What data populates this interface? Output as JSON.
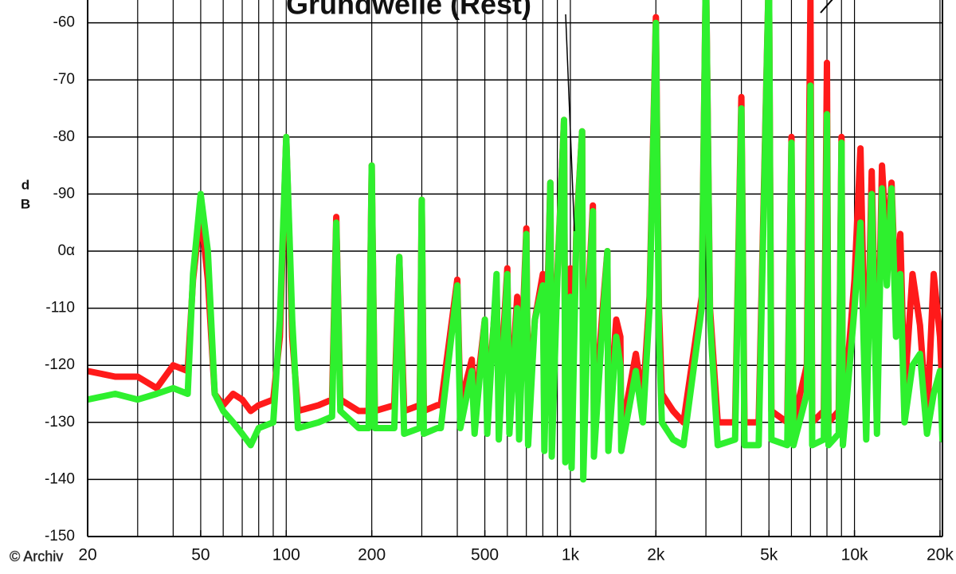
{
  "chart_data": {
    "type": "line",
    "title": "Grundwelle (Rest)",
    "y_label_lines": [
      "d",
      "B"
    ],
    "credit": "© Archiv",
    "log_x": true,
    "grid": true,
    "xlim": [
      20,
      20400
    ],
    "ylim": [
      -150,
      -56
    ],
    "xticks": [
      20,
      50,
      100,
      200,
      500,
      {
        "value": 1000,
        "label": "1k"
      },
      {
        "value": 2000,
        "label": "2k"
      },
      {
        "value": 5000,
        "label": "5k"
      },
      {
        "value": 10000,
        "label": "10k"
      },
      {
        "value": 20000,
        "label": "20k"
      }
    ],
    "xgrid": [
      20,
      30,
      40,
      50,
      60,
      70,
      80,
      90,
      100,
      200,
      300,
      400,
      500,
      600,
      700,
      800,
      900,
      1000,
      2000,
      3000,
      4000,
      5000,
      6000,
      7000,
      8000,
      9000,
      10000,
      20000
    ],
    "yticks": [
      -60,
      -70,
      -80,
      -90,
      {
        "value": -100,
        "label": "0α"
      },
      -110,
      -120,
      -130,
      -140,
      -150
    ],
    "x": [
      20,
      25,
      30,
      35,
      40,
      45,
      47,
      50,
      53,
      56,
      60,
      65,
      70,
      75,
      80,
      90,
      95,
      100,
      105,
      110,
      130,
      145,
      150,
      155,
      180,
      195,
      200,
      205,
      240,
      250,
      260,
      295,
      300,
      305,
      340,
      350,
      400,
      410,
      450,
      460,
      500,
      510,
      550,
      560,
      600,
      610,
      650,
      660,
      700,
      710,
      750,
      800,
      810,
      850,
      860,
      900,
      950,
      960,
      1000,
      1010,
      1050,
      1100,
      1110,
      1150,
      1200,
      1210,
      1300,
      1350,
      1360,
      1450,
      1500,
      1510,
      1700,
      1800,
      1900,
      2000,
      2050,
      2100,
      2300,
      2500,
      2900,
      3000,
      3100,
      3300,
      3800,
      4000,
      4100,
      4600,
      5000,
      5100,
      5800,
      6000,
      6100,
      6800,
      7000,
      7100,
      7800,
      8000,
      8100,
      8800,
      9000,
      9100,
      10000,
      10500,
      11000,
      11500,
      12000,
      12500,
      13000,
      13500,
      14000,
      14500,
      15000,
      16000,
      17000,
      18000,
      19000,
      20000,
      20400
    ],
    "series": [
      {
        "name": "rot",
        "color": "#ff1a1a",
        "values": [
          -121,
          -122,
          -122,
          -124,
          -120,
          -121,
          -105,
          -93,
          -105,
          -125,
          -127,
          -125,
          -126,
          -128,
          -127,
          -126,
          -115,
          -80,
          -115,
          -128,
          -127,
          -126,
          -94,
          -126,
          -128,
          -128,
          -85,
          -128,
          -127,
          -101,
          -128,
          -127,
          -91,
          -128,
          -127,
          -127,
          -105,
          -127,
          -119,
          -128,
          -112,
          -128,
          -106,
          -128,
          -103,
          -129,
          -108,
          -129,
          -96,
          -129,
          -112,
          -104,
          -130,
          -88,
          -130,
          -104,
          -77,
          -131,
          -103,
          -132,
          -96,
          -79,
          -132,
          -110,
          -92,
          -130,
          -110,
          -100,
          -131,
          -112,
          -115,
          -132,
          -118,
          -126,
          -108,
          -59,
          -110,
          -125,
          -128,
          -130,
          -108,
          -50,
          -110,
          -130,
          -130,
          -73,
          -130,
          -130,
          -50,
          -128,
          -130,
          -80,
          -130,
          -120,
          -56,
          -130,
          -128,
          -67,
          -130,
          -128,
          -80,
          -130,
          -105,
          -82,
          -130,
          -86,
          -128,
          -85,
          -100,
          -88,
          -110,
          -97,
          -125,
          -104,
          -113,
          -130,
          -104,
          -115,
          -125
        ]
      },
      {
        "name": "grün",
        "color": "#2ef02e",
        "values": [
          -126,
          -125,
          -126,
          -125,
          -124,
          -125,
          -104,
          -90,
          -100,
          -125,
          -128,
          -130,
          -132,
          -134,
          -131,
          -130,
          -112,
          -80,
          -112,
          -131,
          -130,
          -129,
          -95,
          -128,
          -131,
          -131,
          -85,
          -131,
          -131,
          -101,
          -132,
          -131,
          -91,
          -132,
          -131,
          -131,
          -106,
          -131,
          -121,
          -132,
          -112,
          -132,
          -104,
          -133,
          -104,
          -132,
          -110,
          -133,
          -97,
          -134,
          -112,
          -106,
          -135,
          -88,
          -136,
          -105,
          -77,
          -137,
          -108,
          -138,
          -97,
          -79,
          -140,
          -112,
          -93,
          -136,
          -112,
          -100,
          -135,
          -115,
          -120,
          -135,
          -121,
          -130,
          -110,
          -60,
          -115,
          -130,
          -133,
          -134,
          -110,
          -50,
          -112,
          -134,
          -133,
          -75,
          -134,
          -134,
          -50,
          -133,
          -134,
          -81,
          -134,
          -125,
          -71,
          -134,
          -133,
          -76,
          -134,
          -132,
          -81,
          -134,
          -110,
          -95,
          -133,
          -90,
          -132,
          -89,
          -106,
          -89,
          -115,
          -104,
          -130,
          -120,
          -118,
          -132,
          -125,
          -121,
          -133
        ]
      }
    ]
  }
}
